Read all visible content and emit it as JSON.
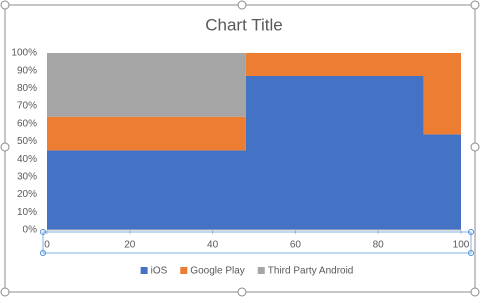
{
  "chart_data": {
    "type": "stacked-area",
    "title": "Chart Title",
    "x": [
      0,
      48,
      48,
      91,
      91,
      100
    ],
    "series": [
      {
        "name": "iOS",
        "color": "#4472c4",
        "values": [
          45,
          45,
          87,
          87,
          54,
          54
        ]
      },
      {
        "name": "Google Play",
        "color": "#ed7d31",
        "values": [
          19,
          19,
          13,
          13,
          46,
          46
        ]
      },
      {
        "name": "Third Party Android",
        "color": "#a5a5a5",
        "values": [
          36,
          36,
          0,
          0,
          0,
          0
        ]
      }
    ],
    "xlim": [
      0,
      100
    ],
    "xticks": [
      0,
      20,
      40,
      60,
      80,
      100
    ],
    "ylim": [
      0,
      100
    ],
    "yticks": [
      {
        "value": 0,
        "label": "0%"
      },
      {
        "value": 10,
        "label": "10%"
      },
      {
        "value": 20,
        "label": "20%"
      },
      {
        "value": 30,
        "label": "30%"
      },
      {
        "value": 40,
        "label": "40%"
      },
      {
        "value": 50,
        "label": "50%"
      },
      {
        "value": 60,
        "label": "60%"
      },
      {
        "value": 70,
        "label": "70%"
      },
      {
        "value": 80,
        "label": "80%"
      },
      {
        "value": 90,
        "label": "90%"
      },
      {
        "value": 100,
        "label": "100%"
      }
    ],
    "legend": "bottom"
  }
}
